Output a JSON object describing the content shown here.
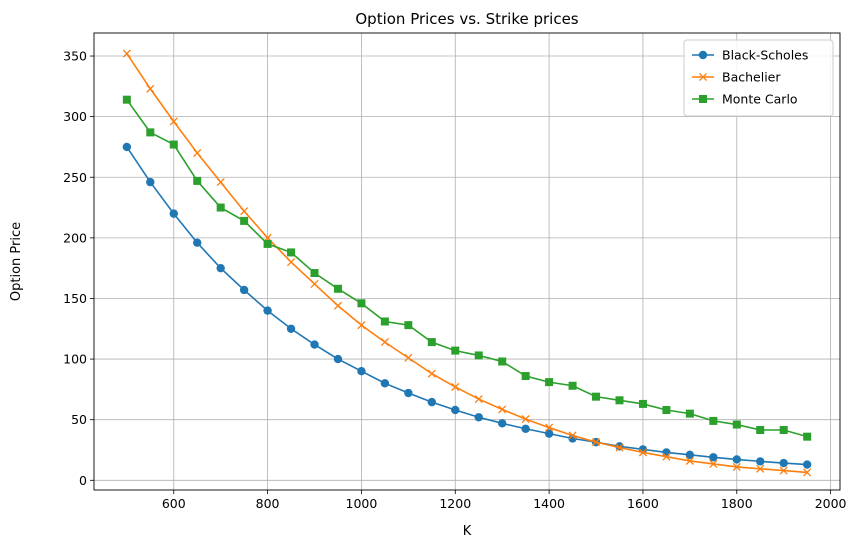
{
  "chart_data": {
    "type": "line",
    "title": "Option Prices vs. Strike prices",
    "xlabel": "K",
    "ylabel": "Option Price",
    "xlim": [
      430,
      2020
    ],
    "ylim": [
      -8,
      369
    ],
    "xticks": [
      600,
      800,
      1000,
      1200,
      1400,
      1600,
      1800,
      2000
    ],
    "yticks": [
      0,
      50,
      100,
      150,
      200,
      250,
      300,
      350
    ],
    "grid": true,
    "legend_position": "top-right",
    "x": [
      500,
      550,
      600,
      650,
      700,
      750,
      800,
      850,
      900,
      950,
      1000,
      1050,
      1100,
      1150,
      1200,
      1250,
      1300,
      1350,
      1400,
      1450,
      1500,
      1550,
      1600,
      1650,
      1700,
      1750,
      1800,
      1850,
      1900,
      1950
    ],
    "series": [
      {
        "name": "Black-Scholes",
        "color": "#1f77b4",
        "marker": "circle",
        "values": [
          275,
          246,
          220,
          196,
          175,
          157,
          140,
          125,
          112,
          100,
          90,
          80,
          72,
          64.5,
          58,
          52,
          47,
          42.5,
          38.5,
          34.5,
          31.5,
          28,
          25.5,
          23,
          21,
          19,
          17.2,
          15.6,
          14.2,
          13
        ]
      },
      {
        "name": "Bachelier",
        "color": "#ff7f0e",
        "marker": "x",
        "values": [
          352,
          323,
          296,
          270,
          246,
          222,
          200,
          180,
          162,
          144,
          128,
          114,
          101,
          88,
          77,
          67,
          58.5,
          50.5,
          43.5,
          37,
          31.5,
          27,
          23,
          19.5,
          16,
          13.5,
          11,
          9.5,
          8,
          6.5
        ]
      },
      {
        "name": "Monte Carlo",
        "color": "#2ca02c",
        "marker": "square",
        "values": [
          314,
          287,
          277,
          247,
          225,
          214,
          195,
          188,
          171,
          158,
          146,
          131,
          128,
          114,
          107,
          103,
          98,
          86,
          81,
          78,
          69,
          66,
          63,
          58,
          55,
          49,
          46,
          41.5,
          41.5,
          36
        ]
      }
    ]
  }
}
